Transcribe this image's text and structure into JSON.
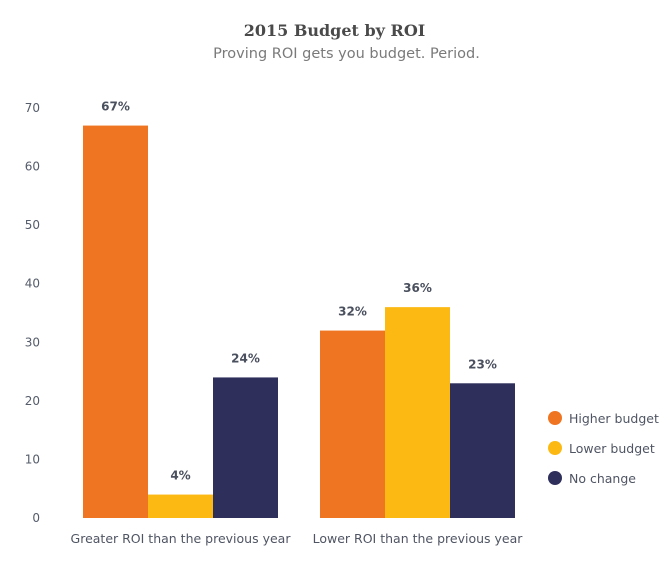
{
  "chart_data": {
    "type": "bar",
    "title": "2015 Budget by ROI",
    "subtitle": "Proving ROI gets you budget. Period.",
    "xlabel": "",
    "ylabel": "",
    "categories": [
      "Greater ROI than the previous year",
      "Lower ROI than the previous year"
    ],
    "series": [
      {
        "name": "Higher budget",
        "color": "#f07522",
        "values": [
          67,
          32
        ],
        "labels": [
          "67%",
          "32%"
        ]
      },
      {
        "name": "Lower budget",
        "color": "#fdb913",
        "values": [
          4,
          36
        ],
        "labels": [
          "4%",
          "36%"
        ]
      },
      {
        "name": "No change",
        "color": "#2f2f5c",
        "values": [
          24,
          23
        ],
        "labels": [
          "24%",
          "23%"
        ]
      }
    ],
    "ylim": [
      0,
      70
    ],
    "yticks": [
      0,
      10,
      20,
      30,
      40,
      50,
      60,
      70
    ],
    "grid": false,
    "legend_position": "right"
  }
}
